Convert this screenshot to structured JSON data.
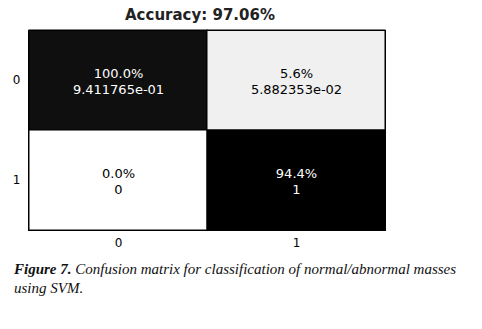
{
  "chart_data": {
    "type": "heatmap",
    "title": "Accuracy: 97.06%",
    "x_categories": [
      "0",
      "1"
    ],
    "y_categories": [
      "0",
      "1"
    ],
    "cells": [
      {
        "x": "0",
        "y": "0",
        "value": 0.9411765,
        "value_label": "9.411765e-01",
        "percent_label": "100.0%"
      },
      {
        "x": "1",
        "y": "0",
        "value": 0.05882353,
        "value_label": "5.882353e-02",
        "percent_label": "5.6%"
      },
      {
        "x": "0",
        "y": "1",
        "value": 0,
        "value_label": "0",
        "percent_label": "0.0%"
      },
      {
        "x": "1",
        "y": "1",
        "value": 1,
        "value_label": "1",
        "percent_label": "94.4%"
      }
    ],
    "color": [
      "#ffffff",
      "#000000"
    ],
    "data_labels": true,
    "caption": [
      "Figure 7.",
      "Confusion matrix for classification of normal/abnormal masses using SVM."
    ]
  }
}
